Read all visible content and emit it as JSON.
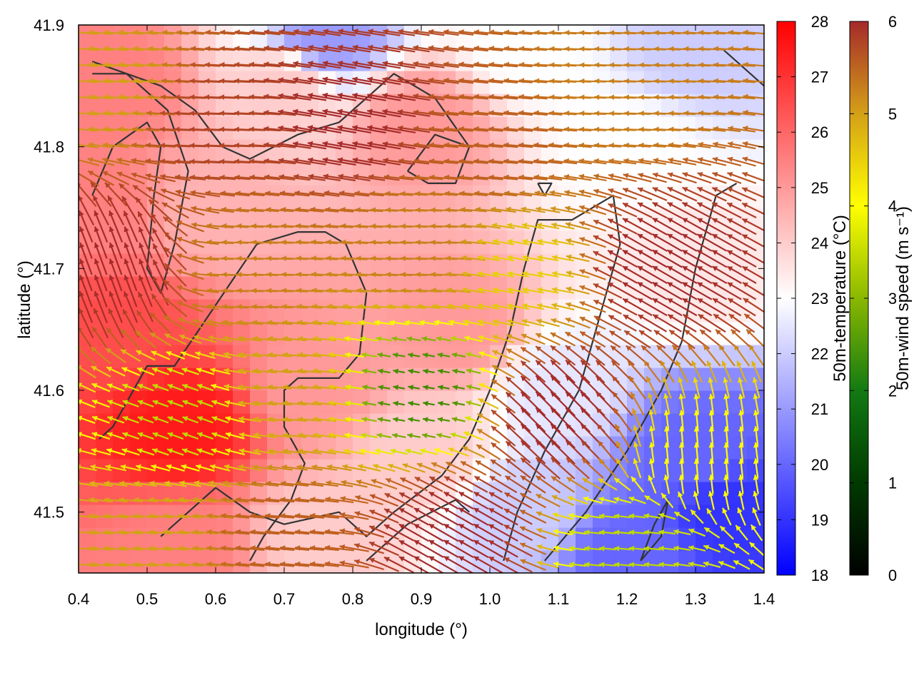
{
  "chart_data": {
    "type": "heatmap",
    "title": "",
    "xlabel": "longitude (°)",
    "ylabel": "latitude (°)",
    "xlim": [
      0.4,
      1.4
    ],
    "ylim": [
      41.45,
      41.9
    ],
    "xticks": [
      0.4,
      0.5,
      0.6,
      0.7,
      0.8,
      0.9,
      1.0,
      1.1,
      1.2,
      1.3,
      1.4
    ],
    "xtick_labels": [
      "0.4",
      "0.5",
      "0.6",
      "0.7",
      "0.8",
      "0.9",
      "1.0",
      "1.1",
      "1.2",
      "1.3",
      "1.4"
    ],
    "yticks": [
      41.5,
      41.6,
      41.7,
      41.8,
      41.9
    ],
    "ytick_labels": [
      "41.5",
      "41.6",
      "41.7",
      "41.8",
      "41.9"
    ],
    "grid": false,
    "temperature_colorbar": {
      "label": "50m-temperature (°C)",
      "range": [
        18,
        28
      ],
      "ticks": [
        18,
        19,
        20,
        21,
        22,
        23,
        24,
        25,
        26,
        27,
        28
      ],
      "tick_labels": [
        "18",
        "19",
        "20",
        "21",
        "22",
        "23",
        "24",
        "25",
        "26",
        "27",
        "28"
      ],
      "colors": [
        "#0000ff",
        "#ffffff",
        "#ff0000"
      ]
    },
    "wind_colorbar": {
      "label": "50m-wind speed (m s⁻¹)",
      "range": [
        0,
        6
      ],
      "ticks": [
        0,
        1,
        2,
        3,
        4,
        5,
        6
      ],
      "tick_labels": [
        "0",
        "1",
        "2",
        "3",
        "4",
        "5",
        "6"
      ],
      "colors": [
        "#000000",
        "#006400",
        "#7fb000",
        "#ffff00",
        "#d4a017",
        "#c06020",
        "#a52a2a"
      ]
    },
    "temperature_anchors": [
      {
        "lon": 0.45,
        "lat": 41.85,
        "t": 25.5
      },
      {
        "lon": 0.55,
        "lat": 41.57,
        "t": 27.5
      },
      {
        "lon": 0.45,
        "lat": 41.65,
        "t": 26.5
      },
      {
        "lon": 0.6,
        "lat": 41.75,
        "t": 24.5
      },
      {
        "lon": 0.7,
        "lat": 41.85,
        "t": 24.0
      },
      {
        "lon": 0.75,
        "lat": 41.6,
        "t": 25.0
      },
      {
        "lon": 0.9,
        "lat": 41.82,
        "t": 25.0
      },
      {
        "lon": 0.95,
        "lat": 41.65,
        "t": 25.0
      },
      {
        "lon": 0.9,
        "lat": 41.55,
        "t": 24.0
      },
      {
        "lon": 1.05,
        "lat": 41.88,
        "t": 23.0
      },
      {
        "lon": 1.3,
        "lat": 41.88,
        "t": 22.0
      },
      {
        "lon": 0.76,
        "lat": 41.89,
        "t": 21.0
      },
      {
        "lon": 1.2,
        "lat": 41.8,
        "t": 23.0
      },
      {
        "lon": 1.3,
        "lat": 41.7,
        "t": 23.5
      },
      {
        "lon": 1.1,
        "lat": 41.6,
        "t": 22.5
      },
      {
        "lon": 1.05,
        "lat": 41.5,
        "t": 22.0
      },
      {
        "lon": 1.3,
        "lat": 41.55,
        "t": 20.0
      },
      {
        "lon": 1.35,
        "lat": 41.5,
        "t": 19.0
      },
      {
        "lon": 1.2,
        "lat": 41.47,
        "t": 20.0
      },
      {
        "lon": 0.55,
        "lat": 41.47,
        "t": 25.5
      },
      {
        "lon": 0.75,
        "lat": 41.48,
        "t": 24.0
      },
      {
        "lon": 0.42,
        "lat": 41.75,
        "t": 25.5
      }
    ],
    "wind_zones": [
      {
        "lon": 0.45,
        "lat": 41.85,
        "speed": 4.0,
        "dir_deg": 175
      },
      {
        "lon": 0.6,
        "lat": 41.82,
        "speed": 5.5,
        "dir_deg": 178
      },
      {
        "lon": 0.8,
        "lat": 41.82,
        "speed": 6.0,
        "dir_deg": 170
      },
      {
        "lon": 1.0,
        "lat": 41.8,
        "speed": 5.0,
        "dir_deg": 175
      },
      {
        "lon": 1.2,
        "lat": 41.85,
        "speed": 4.5,
        "dir_deg": 178
      },
      {
        "lon": 0.45,
        "lat": 41.7,
        "speed": 6.0,
        "dir_deg": 110
      },
      {
        "lon": 0.65,
        "lat": 41.7,
        "speed": 4.5,
        "dir_deg": 178
      },
      {
        "lon": 0.9,
        "lat": 41.72,
        "speed": 4.5,
        "dir_deg": 178
      },
      {
        "lon": 1.05,
        "lat": 41.7,
        "speed": 3.5,
        "dir_deg": 170
      },
      {
        "lon": 1.25,
        "lat": 41.7,
        "speed": 6.0,
        "dir_deg": 150
      },
      {
        "lon": 0.55,
        "lat": 41.58,
        "speed": 2.5,
        "dir_deg": 160
      },
      {
        "lon": 0.7,
        "lat": 41.6,
        "speed": 4.0,
        "dir_deg": 175
      },
      {
        "lon": 0.9,
        "lat": 41.6,
        "speed": 1.5,
        "dir_deg": 170
      },
      {
        "lon": 1.1,
        "lat": 41.58,
        "speed": 6.0,
        "dir_deg": 135
      },
      {
        "lon": 1.3,
        "lat": 41.55,
        "speed": 3.0,
        "dir_deg": 95
      },
      {
        "lon": 0.5,
        "lat": 41.48,
        "speed": 4.0,
        "dir_deg": 175
      },
      {
        "lon": 0.7,
        "lat": 41.48,
        "speed": 5.0,
        "dir_deg": 175
      },
      {
        "lon": 0.95,
        "lat": 41.48,
        "speed": 6.0,
        "dir_deg": 150
      },
      {
        "lon": 1.2,
        "lat": 41.47,
        "speed": 2.5,
        "dir_deg": 175
      }
    ],
    "contours": [
      [
        [
          0.42,
          41.87
        ],
        [
          0.52,
          41.85
        ],
        [
          0.57,
          41.83
        ],
        [
          0.61,
          41.8
        ],
        [
          0.65,
          41.79
        ],
        [
          0.72,
          41.81
        ],
        [
          0.78,
          41.82
        ],
        [
          0.82,
          41.84
        ],
        [
          0.86,
          41.86
        ],
        [
          0.92,
          41.84
        ],
        [
          0.97,
          41.8
        ]
      ],
      [
        [
          0.43,
          41.56
        ],
        [
          0.45,
          41.57
        ],
        [
          0.5,
          41.62
        ],
        [
          0.54,
          41.62
        ],
        [
          0.6,
          41.67
        ],
        [
          0.66,
          41.72
        ],
        [
          0.72,
          41.73
        ],
        [
          0.76,
          41.73
        ],
        [
          0.79,
          41.72
        ],
        [
          0.82,
          41.68
        ],
        [
          0.81,
          41.63
        ],
        [
          0.78,
          41.61
        ],
        [
          0.72,
          41.61
        ],
        [
          0.7,
          41.6
        ],
        [
          0.7,
          41.57
        ],
        [
          0.73,
          41.54
        ],
        [
          0.71,
          41.51
        ],
        [
          0.67,
          41.48
        ],
        [
          0.65,
          41.46
        ]
      ],
      [
        [
          0.52,
          41.48
        ],
        [
          0.56,
          41.5
        ],
        [
          0.6,
          41.52
        ],
        [
          0.65,
          41.5
        ],
        [
          0.7,
          41.49
        ],
        [
          0.78,
          41.5
        ],
        [
          0.82,
          41.48
        ],
        [
          0.86,
          41.5
        ],
        [
          0.93,
          41.53
        ],
        [
          0.97,
          41.56
        ],
        [
          1.0,
          41.6
        ],
        [
          1.03,
          41.65
        ],
        [
          1.05,
          41.7
        ],
        [
          1.07,
          41.74
        ],
        [
          1.12,
          41.74
        ],
        [
          1.18,
          41.76
        ],
        [
          1.19,
          41.72
        ],
        [
          1.16,
          41.66
        ],
        [
          1.13,
          41.6
        ],
        [
          1.08,
          41.55
        ],
        [
          1.04,
          41.5
        ],
        [
          1.02,
          41.46
        ]
      ],
      [
        [
          1.08,
          41.46
        ],
        [
          1.14,
          41.5
        ],
        [
          1.2,
          41.55
        ],
        [
          1.25,
          41.6
        ],
        [
          1.28,
          41.64
        ],
        [
          1.3,
          41.7
        ],
        [
          1.33,
          41.76
        ],
        [
          1.36,
          41.77
        ]
      ],
      [
        [
          0.82,
          41.46
        ],
        [
          0.88,
          41.49
        ],
        [
          0.95,
          41.51
        ],
        [
          0.97,
          41.5
        ]
      ],
      [
        [
          0.88,
          41.78
        ],
        [
          0.92,
          41.81
        ],
        [
          0.97,
          41.8
        ],
        [
          0.95,
          41.77
        ],
        [
          0.91,
          41.77
        ],
        [
          0.88,
          41.78
        ]
      ],
      [
        [
          0.42,
          41.76
        ],
        [
          0.45,
          41.8
        ],
        [
          0.5,
          41.82
        ],
        [
          0.52,
          41.8
        ],
        [
          0.51,
          41.76
        ],
        [
          0.5,
          41.7
        ],
        [
          0.52,
          41.68
        ],
        [
          0.54,
          41.72
        ],
        [
          0.56,
          41.78
        ],
        [
          0.53,
          41.83
        ],
        [
          0.47,
          41.86
        ],
        [
          0.42,
          41.86
        ]
      ],
      [
        [
          1.07,
          41.77
        ],
        [
          1.09,
          41.77
        ],
        [
          1.08,
          41.76
        ],
        [
          1.07,
          41.77
        ]
      ],
      [
        [
          1.22,
          41.46
        ],
        [
          1.25,
          41.48
        ],
        [
          1.26,
          41.51
        ],
        [
          1.24,
          41.49
        ],
        [
          1.22,
          41.46
        ]
      ],
      [
        [
          1.34,
          41.88
        ],
        [
          1.4,
          41.85
        ]
      ]
    ]
  }
}
